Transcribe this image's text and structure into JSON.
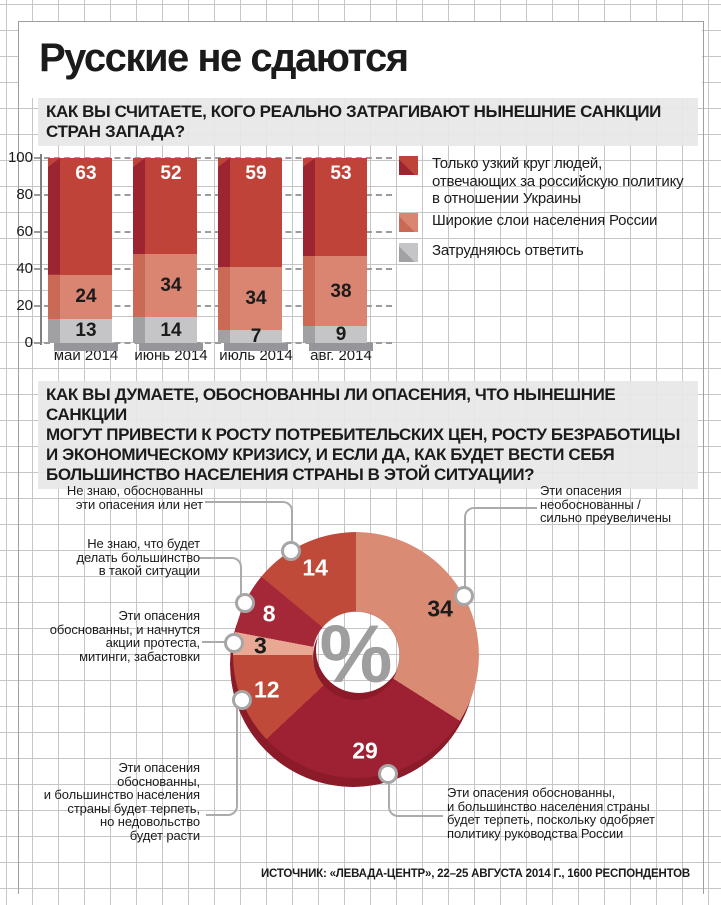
{
  "header": {
    "title": "Русские не сдаются"
  },
  "question1": {
    "lines": [
      "КАК ВЫ СЧИТАЕТЕ, КОГО РЕАЛЬНО ЗАТРАГИВАЮТ НЫНЕШНИЕ САНКЦИИ",
      "СТРАН ЗАПАДА?"
    ]
  },
  "question2": {
    "lines": [
      "КАК ВЫ ДУМАЕТЕ, ОБОСНОВАННЫ ЛИ ОПАСЕНИЯ, ЧТО НЫНЕШНИЕ САНКЦИИ",
      "МОГУТ ПРИВЕСТИ К РОСТУ ПОТРЕБИТЕЛЬСКИХ ЦЕН, РОСТУ БЕЗРАБОТИЦЫ",
      "И ЭКОНОМИЧЕСКОМУ КРИЗИСУ, И ЕСЛИ ДА, КАК БУДЕТ ВЕСТИ СЕБЯ",
      "БОЛЬШИНСТВО НАСЕЛЕНИЯ СТРАНЫ В ЭТОЙ СИТУАЦИИ?"
    ]
  },
  "chart_data": [
    {
      "type": "bar",
      "stacked": true,
      "categories": [
        "май 2014",
        "июнь 2014",
        "июль 2014",
        "авг. 2014"
      ],
      "series": [
        {
          "name": "Только узкий круг людей, отвечающих за российскую политику в отношении Украины",
          "values": [
            63,
            52,
            59,
            53
          ],
          "color": "#c04339",
          "edge_color": "#9c2531",
          "label_color": "#ffffff"
        },
        {
          "name": "Широкие слои населения России",
          "values": [
            24,
            34,
            34,
            38
          ],
          "color": "#d98572",
          "edge_color": "#ca6a56",
          "label_color": "#1b1b1b"
        },
        {
          "name": "Затрудняюсь ответить",
          "values": [
            13,
            14,
            7,
            9
          ],
          "color": "#c5c5c7",
          "edge_color": "#a1a1a4",
          "label_color": "#1b1b1b"
        }
      ],
      "ylim": [
        0,
        100
      ],
      "yticks": [
        0,
        20,
        40,
        60,
        80,
        100
      ],
      "grid": "dashed horizontal",
      "legend_position": "right"
    },
    {
      "type": "pie",
      "donut": true,
      "center_label": "%",
      "slices": [
        {
          "value": 34,
          "label": "Эти опасения необоснованны / сильно преувеличены",
          "color": "#d98b74",
          "number_color": "#1b1b1b"
        },
        {
          "value": 29,
          "label": "Эти опасения обоснованны, и большинство населения страны будет терпеть, поскольку одобряет политику руководства России",
          "color": "#9e2133",
          "number_color": "#ffffff",
          "marker_angle": 165
        },
        {
          "value": 12,
          "label": "Эти опасения обоснованны, и большинство населения страны будет терпеть, но недовольство будет расти",
          "color": "#c04a39",
          "number_color": "#ffffff"
        },
        {
          "value": 3,
          "label": "Эти опасения обоснованны, и начнутся акции протеста, митинги, забастовки",
          "color": "#e8a893",
          "number_color": "#1b1b1b"
        },
        {
          "value": 8,
          "label": "Не знаю, что будет делать большинство в такой ситуации",
          "color": "#a42837",
          "number_color": "#ffffff"
        },
        {
          "value": 14,
          "label": "Не знаю, обоснованны эти опасения или нет",
          "color": "#c04a39",
          "number_color": "#ffffff",
          "marker_angle": 328
        }
      ]
    }
  ],
  "callouts": {
    "no_know_valid": [
      "Не знаю, обоснованны",
      "эти опасения или нет"
    ],
    "no_know_what": [
      "Не знаю, что будет",
      "делать большинство",
      "в такой ситуации"
    ],
    "protests": [
      "Эти опасения",
      "обоснованны, и начнутся",
      "акции протеста,",
      "митинги, забастовки"
    ],
    "tolerate_discontent": [
      "Эти опасения",
      "обоснованны,",
      "и большинство населения",
      "страны будет терпеть,",
      "но недовольство",
      "будет расти"
    ],
    "unfounded": [
      "Эти опасения",
      "необоснованны /",
      "сильно преувеличены"
    ],
    "tolerate_approve": [
      "Эти опасения обоснованны,",
      "и большинство населения страны",
      "будет терпеть, поскольку одобряет",
      "политику руководства России"
    ]
  },
  "source": "ИСТОЧНИК: «ЛЕВАДА-ЦЕНТР», 22–25 АВГУСТА 2014 Г., 1600 РЕСПОНДЕНТОВ",
  "colors": {
    "grid_line": "#c6c6c6",
    "question_band": "#e7e7e7",
    "text": "#1b1b1b",
    "connector": "#ababab",
    "pie_rim_shadow": "#8c1b2a",
    "bar_shadow": "#96969a",
    "percent_glyph": "#9e9e9e"
  }
}
